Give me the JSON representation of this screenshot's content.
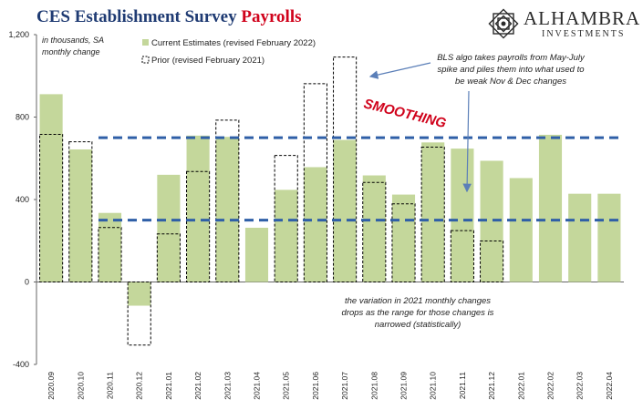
{
  "header": {
    "title_main": "CES Establishment Survey ",
    "title_accent": "Payrolls",
    "accent_color": "#d0021b",
    "title_color": "#1f3b73"
  },
  "logo": {
    "name": "ALHAMBRA",
    "subtitle": "INVESTMENTS",
    "icon": "alhambra-star-icon"
  },
  "units_note": "in thousands, SA\nmonthly change",
  "annotations": {
    "smoothing": "SMOOTHING",
    "bls_note": [
      "BLS algo takes payrolls from May-July",
      "spike and piles them into what used to",
      "be weak Nov & Dec changes"
    ],
    "variation_note": [
      "the variation in 2021 monthly changes",
      "drops as the range for those changes is",
      "narrowed (statistically)"
    ]
  },
  "chart_data": {
    "type": "bar",
    "categories": [
      "2020.09",
      "2020.10",
      "2020.11",
      "2020.12",
      "2021.01",
      "2021.02",
      "2021.03",
      "2021.04",
      "2021.05",
      "2021.06",
      "2021.07",
      "2021.08",
      "2021.09",
      "2021.10",
      "2021.11",
      "2021.12",
      "2022.01",
      "2022.02",
      "2022.03",
      "2022.04"
    ],
    "series": [
      {
        "name": "Current Estimates (revised February 2022)",
        "style": "filled",
        "color": "#c4d79b",
        "values": [
          911,
          643,
          335,
          -115,
          520,
          710,
          704,
          263,
          447,
          557,
          689,
          517,
          424,
          677,
          647,
          588,
          504,
          714,
          428,
          428
        ]
      },
      {
        "name": "Prior (revised February 2021)",
        "style": "dashed-outline",
        "color": "#000000",
        "values": [
          716,
          680,
          264,
          -306,
          233,
          536,
          785,
          null,
          614,
          962,
          1091,
          483,
          379,
          654,
          249,
          199,
          null,
          null,
          null,
          null
        ]
      }
    ],
    "reference_lines": [
      {
        "value": 700,
        "style": "dashed",
        "color": "#2f5fa7"
      },
      {
        "value": 300,
        "style": "dashed",
        "color": "#2f5fa7"
      }
    ],
    "ylim": [
      -400,
      1200
    ],
    "yticks": [
      -400,
      0,
      400,
      800,
      1200
    ],
    "ytick_labels": [
      "-400",
      "0",
      "400",
      "800",
      "1,200"
    ],
    "legend_position": "top-left",
    "grid": false
  }
}
